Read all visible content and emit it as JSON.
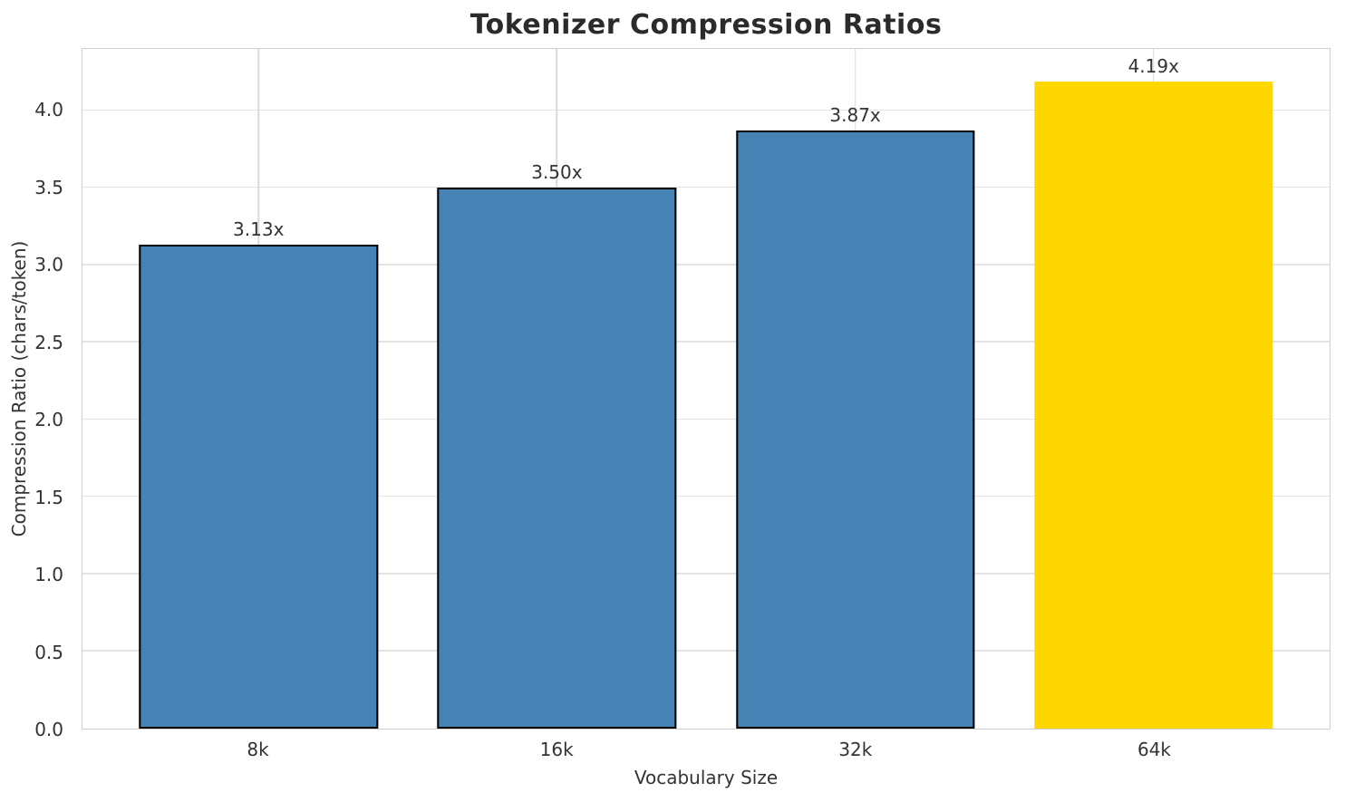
{
  "title": "Tokenizer Compression Ratios",
  "chart_data": {
    "type": "bar",
    "title": "Tokenizer Compression Ratios",
    "categories": [
      "8k",
      "16k",
      "32k",
      "64k"
    ],
    "values": [
      3.13,
      3.5,
      3.87,
      4.19
    ],
    "value_labels": [
      "3.13x",
      "3.50x",
      "3.87x",
      "4.19x"
    ],
    "xlabel": "Vocabulary Size",
    "ylabel": "Compression Ratio (chars/token)",
    "ylim": [
      0,
      4.4
    ],
    "yticks": [
      0.0,
      0.5,
      1.0,
      1.5,
      2.0,
      2.5,
      3.0,
      3.5,
      4.0
    ],
    "ytick_labels": [
      "0.0",
      "0.5",
      "1.0",
      "1.5",
      "2.0",
      "2.5",
      "3.0",
      "3.5",
      "4.0"
    ],
    "grid": true,
    "legend": "none",
    "bar_colors": [
      "#4682B4",
      "#4682B4",
      "#4682B4",
      "#FFD700"
    ],
    "bar_edge_colors": [
      "#000000",
      "#000000",
      "#000000",
      "none"
    ],
    "highlight_index": 3
  },
  "colors": {
    "bar_blue": "#4682B4",
    "bar_gold": "#FFD700",
    "grid_horizontal": "#e4e4e4",
    "grid_vertical": "#d9d9d9",
    "spine": "#cfcfcf",
    "text": "#333333",
    "title_text": "#2b2b2b"
  }
}
